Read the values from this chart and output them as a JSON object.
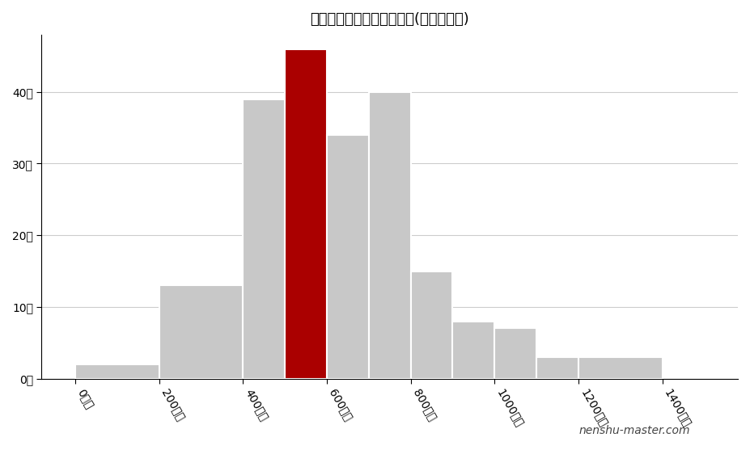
{
  "title": "岐阜造園の年収ポジション(不動産業内)",
  "watermark": "nenshu-master.com",
  "bin_edges": [
    0,
    200,
    400,
    500,
    600,
    700,
    800,
    900,
    1000,
    1100,
    1200,
    1400
  ],
  "bar_heights": [
    2,
    13,
    39,
    46,
    34,
    40,
    15,
    8,
    7,
    3,
    3
  ],
  "bar_colors": [
    "#c8c8c8",
    "#c8c8c8",
    "#c8c8c8",
    "#aa0000",
    "#c8c8c8",
    "#c8c8c8",
    "#c8c8c8",
    "#c8c8c8",
    "#c8c8c8",
    "#c8c8c8",
    "#c8c8c8"
  ],
  "bar_edge_color": "#ffffff",
  "xtick_positions": [
    0,
    200,
    400,
    600,
    800,
    1000,
    1200,
    1400
  ],
  "xtick_labels": [
    "0万円",
    "200万円",
    "400万円",
    "600万円",
    "800万円",
    "1000万円",
    "1200万円",
    "1400万円"
  ],
  "ytick_positions": [
    0,
    10,
    20,
    30,
    40
  ],
  "ytick_labels": [
    "0社",
    "10社",
    "20社",
    "30社",
    "40社"
  ],
  "ylim": [
    0,
    48
  ],
  "background_color": "#ffffff",
  "grid_color": "#cccccc",
  "title_fontsize": 13,
  "tick_fontsize": 10,
  "watermark_fontsize": 10
}
